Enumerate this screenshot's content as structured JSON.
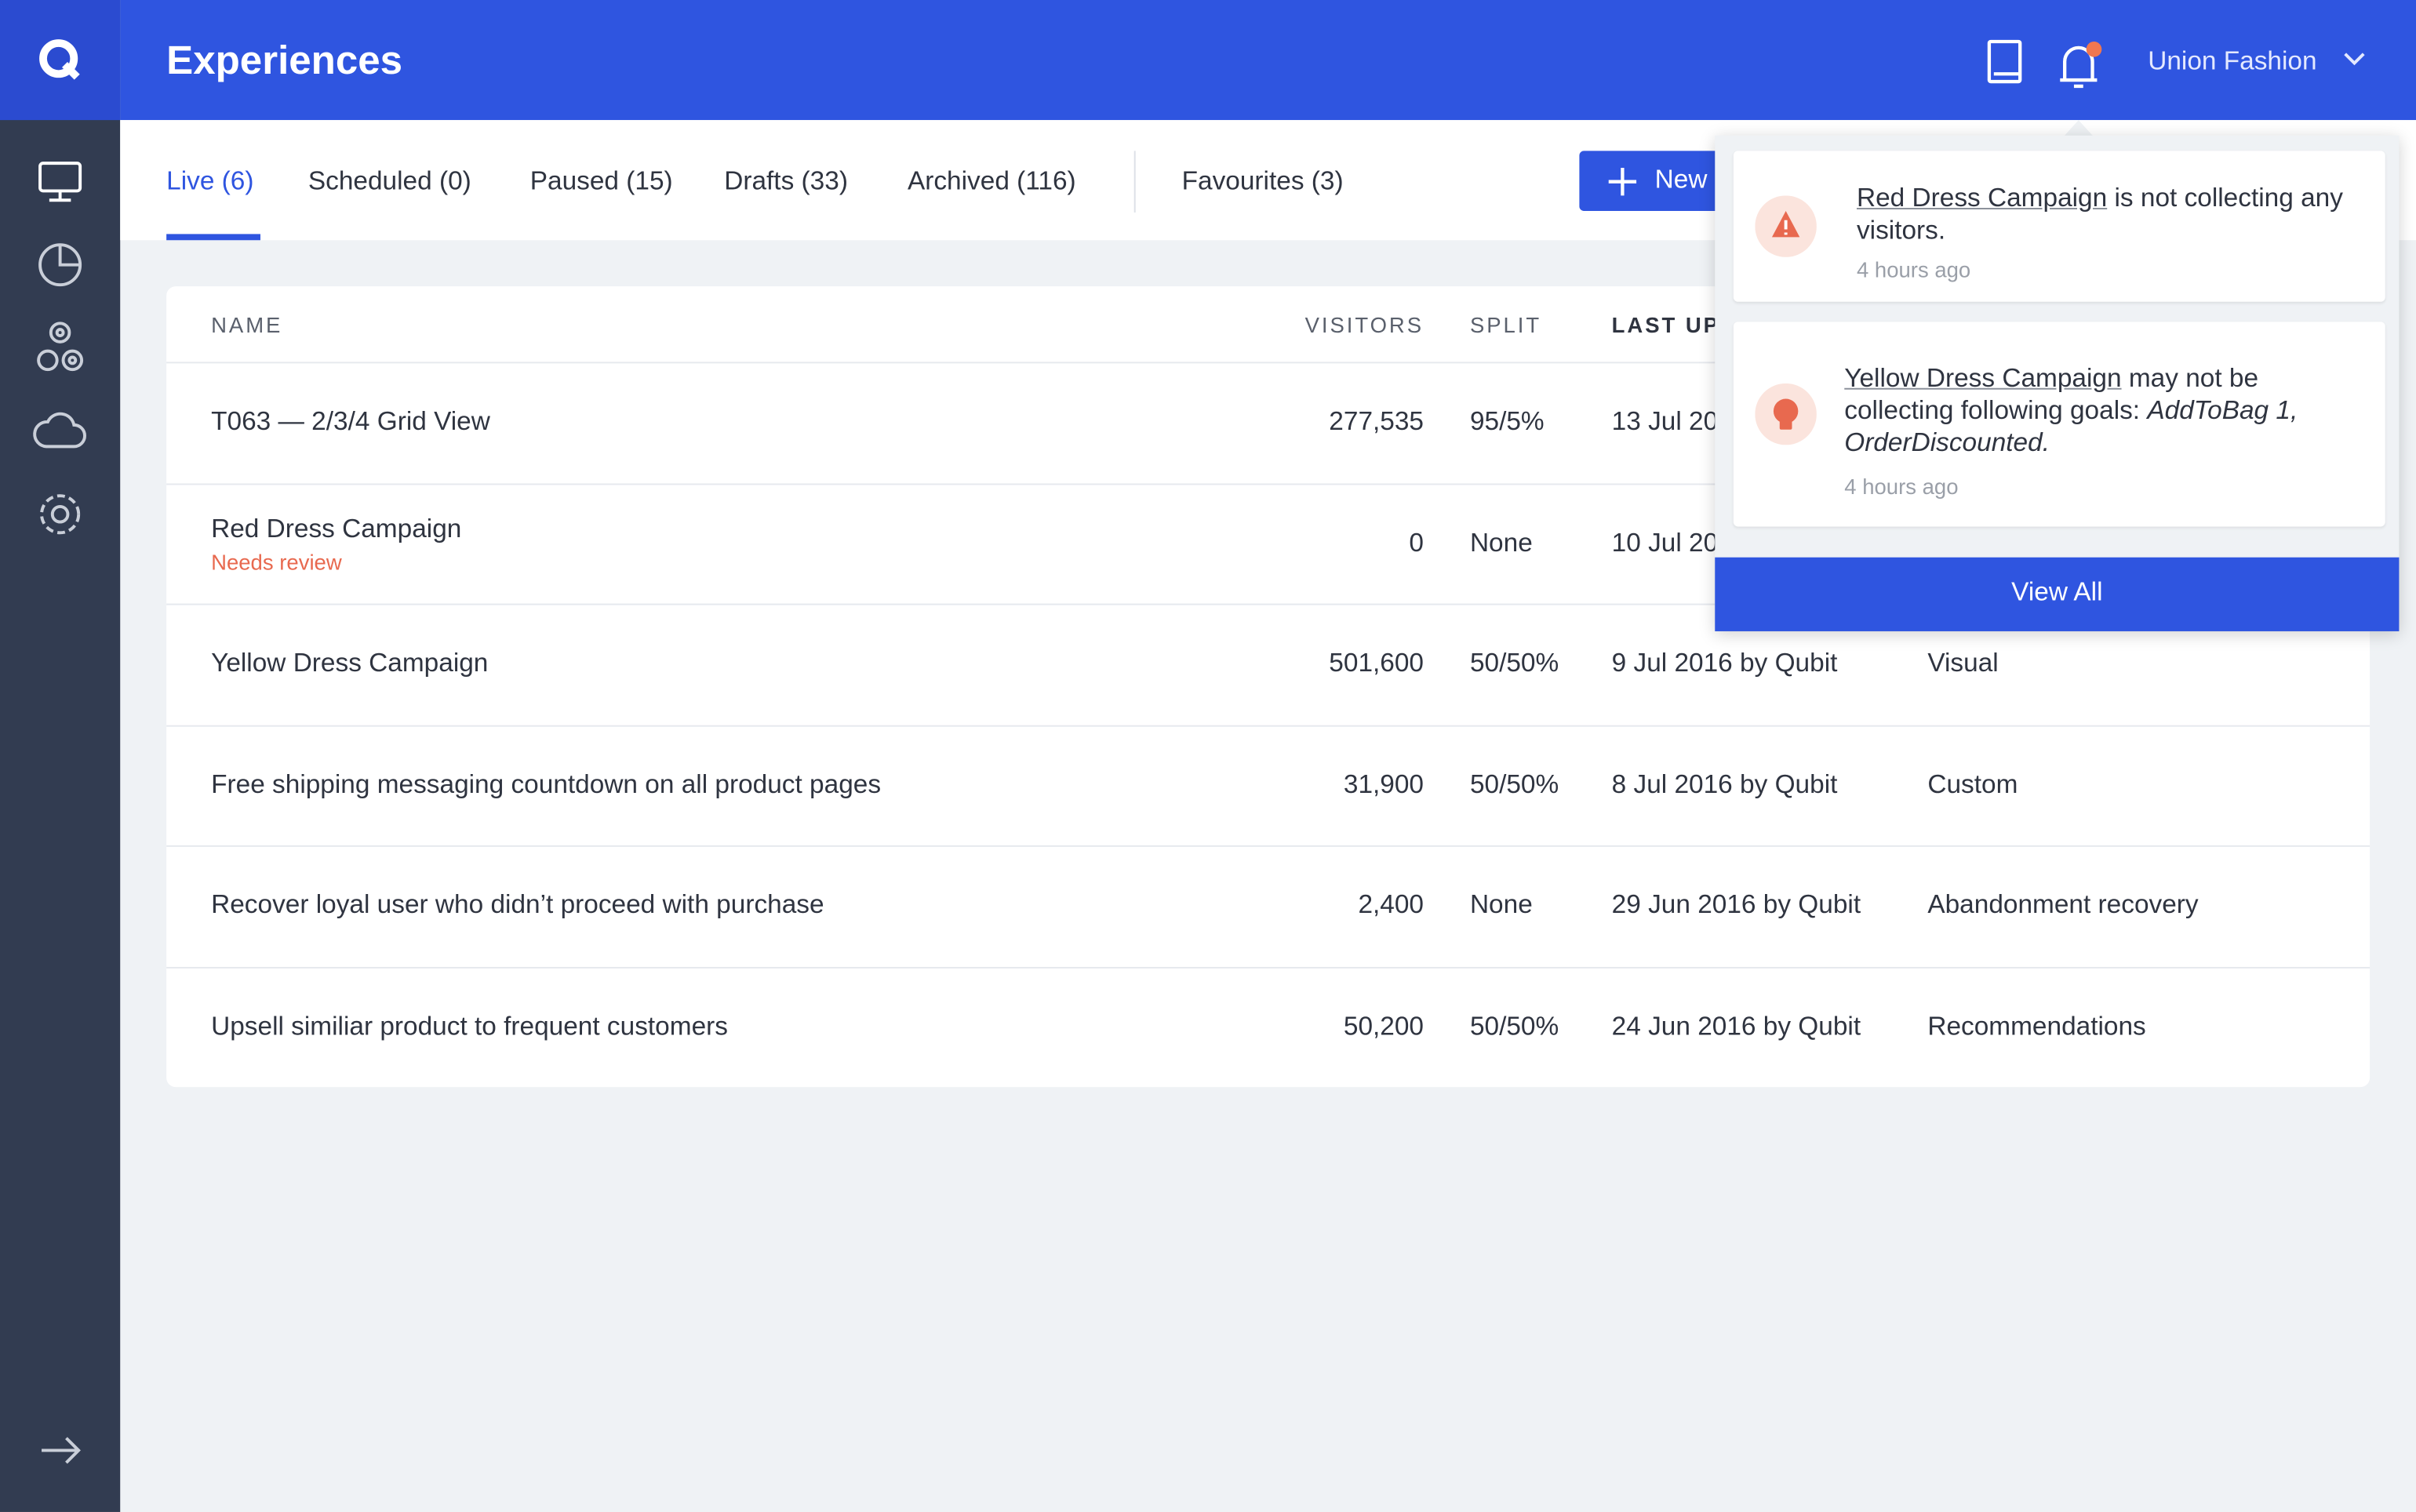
{
  "header": {
    "title": "Experiences",
    "account": "Union Fashion"
  },
  "tabs": [
    "Live (6)",
    "Scheduled (0)",
    "Paused (15)",
    "Drafts (33)",
    "Archived (116)",
    "Favourites (3)"
  ],
  "new_button": "New",
  "table": {
    "columns": [
      "NAME",
      "VISITORS",
      "SPLIT",
      "LAST UP"
    ],
    "rows": [
      {
        "name": "T063 — 2/3/4 Grid View",
        "visitors": "277,535",
        "split": "95/5%",
        "updated": "13 Jul 20"
      },
      {
        "name": "Red Dress Campaign",
        "note": "Needs review",
        "visitors": "0",
        "split": "None",
        "updated": "10 Jul 20"
      },
      {
        "name": "Yellow Dress Campaign",
        "visitors": "501,600",
        "split": "50/50%",
        "updated": "9 Jul 2016 by Qubit",
        "type": "Visual"
      },
      {
        "name": "Free shipping messaging countdown on all product pages",
        "visitors": "31,900",
        "split": "50/50%",
        "updated": "8 Jul 2016 by Qubit",
        "type": "Custom"
      },
      {
        "name": "Recover loyal user who didn’t proceed with purchase",
        "visitors": "2,400",
        "split": "None",
        "updated": "29 Jun 2016 by Qubit",
        "type": "Abandonment recovery"
      },
      {
        "name": "Upsell similiar product to frequent customers",
        "visitors": "50,200",
        "split": "50/50%",
        "updated": "24 Jun 2016 by Qubit",
        "type": "Recommendations"
      }
    ]
  },
  "notifications": {
    "items": [
      {
        "link": "Red Dress Campaign",
        "text": " is not collecting any visitors.",
        "time": "4 hours ago"
      },
      {
        "link": "Yellow Dress Campaign",
        "text": " may not be collecting following goals: ",
        "goals": "AddToBag 1, OrderDiscounted.",
        "time": "4 hours ago"
      }
    ],
    "view_all": "View All"
  }
}
